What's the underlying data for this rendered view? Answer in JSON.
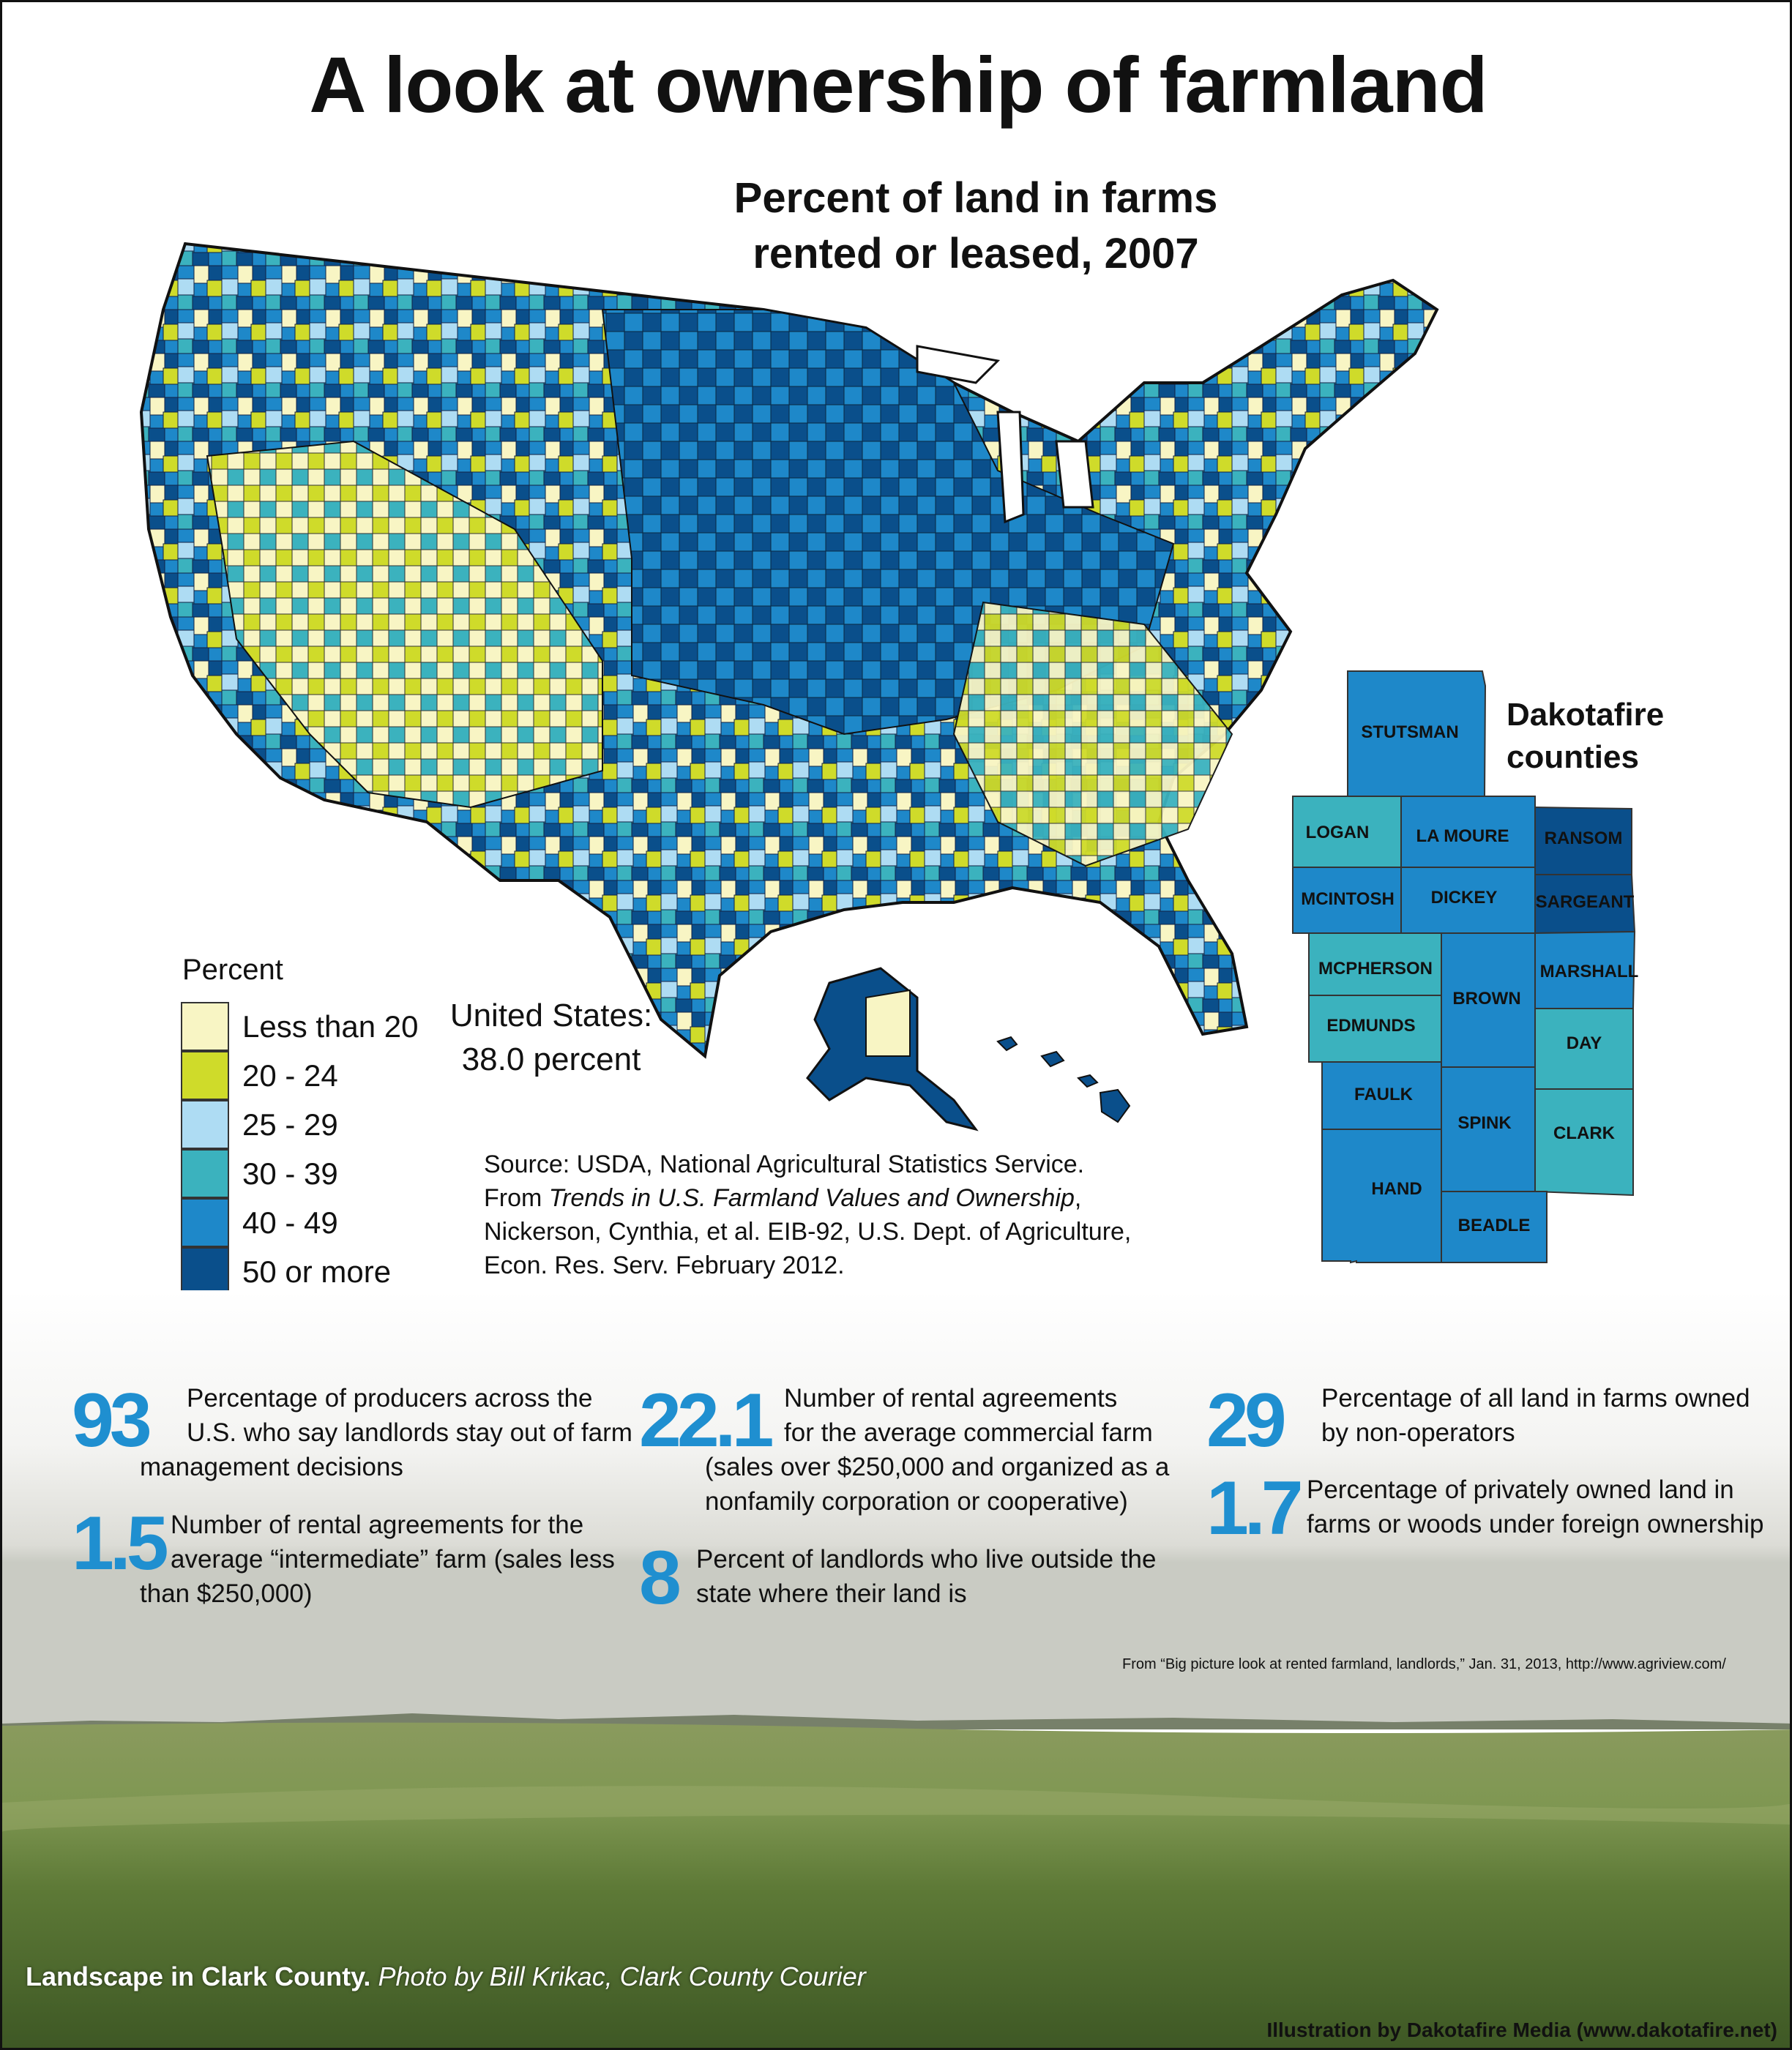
{
  "title": "A look at ownership of farmland",
  "map": {
    "title_line1": "Percent of land in farms",
    "title_line2": "rented or leased, 2007"
  },
  "legend": {
    "title": "Percent",
    "items": [
      {
        "label": "Less than 20",
        "color": "#f8f5c4"
      },
      {
        "label": "20 - 24",
        "color": "#cfdb2a"
      },
      {
        "label": "25 - 29",
        "color": "#aedcf3"
      },
      {
        "label": "30 - 39",
        "color": "#3bb2be"
      },
      {
        "label": "40 - 49",
        "color": "#1e88c9"
      },
      {
        "label": "50 or more",
        "color": "#0a4f8b"
      }
    ]
  },
  "us_total": {
    "line1": "United States:",
    "line2": "38.0 percent"
  },
  "source": {
    "line1": "Source: USDA, National Agricultural Statistics Service.",
    "line2_prefix": "From ",
    "line2_italic": "Trends in U.S. Farmland Values and Ownership",
    "line2_suffix": ",",
    "line3": "Nickerson, Cynthia, et al. EIB-92, U.S. Dept. of Agriculture,",
    "line4": "Econ. Res. Serv. February 2012."
  },
  "dakotafire": {
    "title_line1": "Dakotafire",
    "title_line2": "counties",
    "counties": [
      {
        "name": "STUTSMAN",
        "level": "40 - 49"
      },
      {
        "name": "LOGAN",
        "level": "30 - 39"
      },
      {
        "name": "LA MOURE",
        "level": "40 - 49"
      },
      {
        "name": "RANSOM",
        "level": "50 or more"
      },
      {
        "name": "MCINTOSH",
        "level": "40 - 49"
      },
      {
        "name": "DICKEY",
        "level": "40 - 49"
      },
      {
        "name": "SARGEANT",
        "level": "50 or more"
      },
      {
        "name": "MCPHERSON",
        "level": "30 - 39"
      },
      {
        "name": "BROWN",
        "level": "40 - 49"
      },
      {
        "name": "MARSHALL",
        "level": "40 - 49"
      },
      {
        "name": "EDMUNDS",
        "level": "30 - 39"
      },
      {
        "name": "DAY",
        "level": "30 - 39"
      },
      {
        "name": "FAULK",
        "level": "40 - 49"
      },
      {
        "name": "SPINK",
        "level": "40 - 49"
      },
      {
        "name": "CLARK",
        "level": "30 - 39"
      },
      {
        "name": "HAND",
        "level": "40 - 49"
      },
      {
        "name": "BEADLE",
        "level": "40 - 49"
      }
    ]
  },
  "stats": [
    {
      "num": "93",
      "lines": [
        "Percentage of producers across the",
        "U.S. who say landlords stay out of farm",
        "management decisions"
      ]
    },
    {
      "num": "1.5",
      "lines": [
        "Number of rental agreements for the",
        "average “intermediate” farm (sales less",
        "than $250,000)"
      ]
    },
    {
      "num": "22.1",
      "lines": [
        "Number of rental agreements",
        "for the average commercial farm",
        "(sales over $250,000 and organized as a",
        "nonfamily corporation or cooperative)"
      ]
    },
    {
      "num": "8",
      "lines": [
        "Percent of landlords who live outside the",
        "state where their land is"
      ]
    },
    {
      "num": "29",
      "lines": [
        "Percentage of all land in farms owned",
        "by non-operators"
      ]
    },
    {
      "num": "1.7",
      "lines": [
        "Percentage of privately owned land in",
        "farms or woods under foreign ownership"
      ]
    }
  ],
  "stats_source": "From “Big picture look at rented farmland, landlords,” Jan. 31, 2013, http://www.agriview.com/",
  "photo": {
    "caption_bold": "Landscape in Clark County.",
    "caption_italic": "Photo by Bill Krikac, Clark County Courier"
  },
  "footer": "Illustration by Dakotafire Media (www.dakotafire.net)"
}
